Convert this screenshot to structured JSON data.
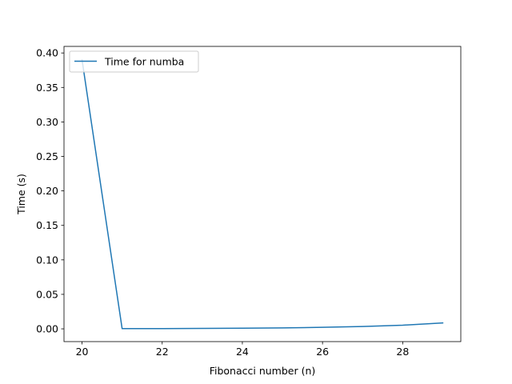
{
  "chart_data": {
    "type": "line",
    "title": "",
    "xlabel": "Fibonacci number (n)",
    "ylabel": "Time (s)",
    "xlim": [
      19.55,
      29.45
    ],
    "ylim": [
      -0.0185,
      0.4095
    ],
    "xticks": [
      20,
      22,
      24,
      26,
      28
    ],
    "xtick_labels": [
      "20",
      "22",
      "24",
      "26",
      "28"
    ],
    "yticks": [
      0.0,
      0.05,
      0.1,
      0.15,
      0.2,
      0.25,
      0.3,
      0.35,
      0.4
    ],
    "ytick_labels": [
      "0.00",
      "0.05",
      "0.10",
      "0.15",
      "0.20",
      "0.25",
      "0.30",
      "0.35",
      "0.40"
    ],
    "grid": false,
    "legend_position": "upper-left",
    "series": [
      {
        "name": "Time for numba",
        "color": "#1f77b4",
        "x": [
          20,
          21,
          22,
          23,
          24,
          25,
          26,
          27,
          28,
          29
        ],
        "values": [
          0.39,
          0.0003,
          0.0004,
          0.0006,
          0.0009,
          0.0014,
          0.0022,
          0.0034,
          0.0053,
          0.0085
        ]
      }
    ]
  }
}
